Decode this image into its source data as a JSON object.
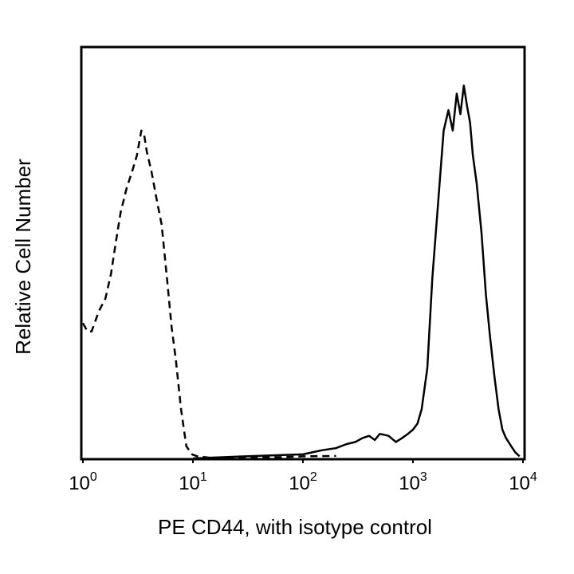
{
  "chart_data": {
    "type": "line",
    "title": "",
    "xlabel": "PE CD44, with isotype control",
    "ylabel": "Relative Cell Number",
    "x_scale": "log10",
    "xlim": [
      1,
      10000
    ],
    "ylim": [
      0,
      100
    ],
    "x_ticks": [
      {
        "base": "10",
        "exp": "0"
      },
      {
        "base": "10",
        "exp": "1"
      },
      {
        "base": "10",
        "exp": "2"
      },
      {
        "base": "10",
        "exp": "3"
      },
      {
        "base": "10",
        "exp": "4"
      }
    ],
    "grid": false,
    "legend": "none",
    "series": [
      {
        "style": "dashed",
        "color": "#000000",
        "x": [
          1.0,
          1.1,
          1.2,
          1.4,
          1.6,
          1.8,
          2.0,
          2.2,
          2.5,
          2.8,
          3.1,
          3.4,
          3.6,
          3.8,
          4.2,
          4.7,
          5.2,
          5.8,
          6.4,
          7.0,
          7.8,
          8.7,
          9.8,
          11,
          13,
          16,
          20,
          30,
          60,
          100,
          200
        ],
        "y": [
          33,
          31,
          31,
          36,
          39,
          45,
          53,
          60,
          66,
          70,
          74,
          80,
          79,
          75,
          70,
          63,
          57,
          44,
          32,
          24,
          12,
          3,
          1,
          0.5,
          0.3,
          0,
          0,
          0.2,
          0.3,
          0.5,
          0.6
        ]
      },
      {
        "style": "solid",
        "color": "#000000",
        "x": [
          10,
          30,
          100,
          150,
          200,
          250,
          300,
          350,
          400,
          450,
          500,
          600,
          700,
          800,
          900,
          1000,
          1100,
          1200,
          1350,
          1500,
          1700,
          1900,
          2100,
          2300,
          2500,
          2700,
          2900,
          3100,
          3300,
          3500,
          3800,
          4200,
          4600,
          5000,
          5500,
          6000,
          6500,
          7000,
          7800,
          8500,
          9300
        ],
        "y": [
          0,
          0.5,
          1,
          2,
          2.5,
          3.5,
          4,
          5,
          5.5,
          4.5,
          6,
          5.5,
          4,
          5,
          6,
          7,
          8.5,
          12,
          22,
          44,
          63,
          80,
          85,
          80,
          89,
          84,
          91,
          86,
          82,
          74,
          67,
          55,
          40,
          30,
          20,
          12,
          7,
          5,
          3,
          1.5,
          0.5
        ]
      }
    ]
  }
}
